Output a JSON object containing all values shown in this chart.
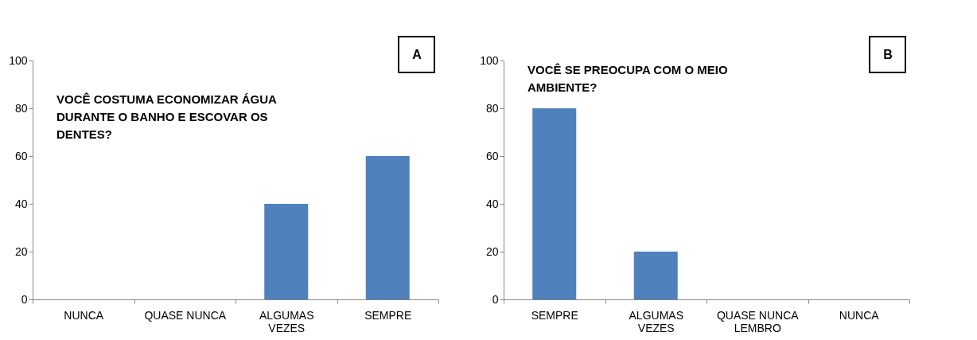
{
  "chart_data": [
    {
      "type": "bar",
      "title": "VOCÊ COSTUMA ECONOMIZAR ÁGUA DURANTE O BANHO E ESCOVAR OS DENTES?",
      "categories": [
        "NUNCA",
        "QUASE NUNCA",
        "ALGUMAS VEZES",
        "SEMPRE"
      ],
      "values": [
        0,
        0,
        40,
        60
      ],
      "color": "#4f81bd",
      "ylim": [
        0,
        100
      ],
      "yticks": [
        0,
        20,
        40,
        60,
        80,
        100
      ],
      "grid": false,
      "annotations": [
        "A"
      ]
    },
    {
      "type": "bar",
      "title": "VOCÊ SE PREOCUPA COM O MEIO AMBIENTE?",
      "categories": [
        "SEMPRE",
        "ALGUMAS VEZES",
        "QUASE NUNCA LEMBRO",
        "NUNCA"
      ],
      "values": [
        80,
        20,
        0,
        0
      ],
      "color": "#4f81bd",
      "ylim": [
        0,
        100
      ],
      "yticks": [
        0,
        20,
        40,
        60,
        80,
        100
      ],
      "grid": false,
      "annotations": [
        "B"
      ]
    }
  ]
}
